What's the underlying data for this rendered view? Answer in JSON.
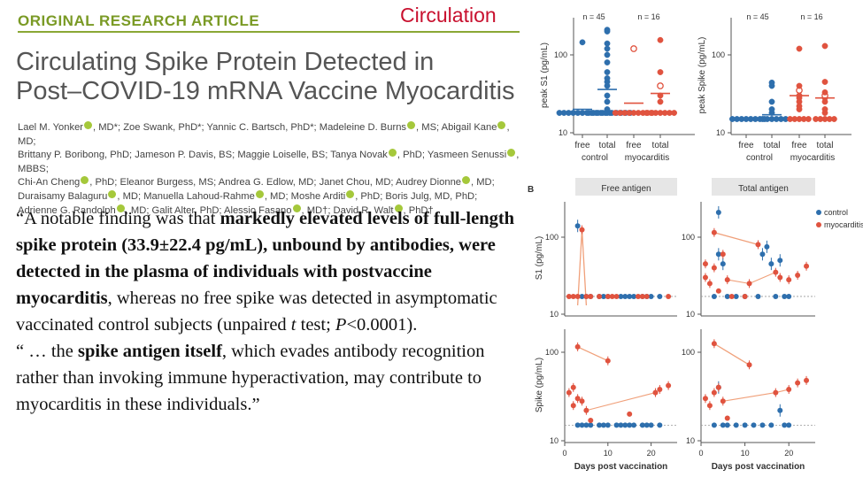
{
  "header": {
    "article_type": "ORIGINAL RESEARCH ARTICLE",
    "journal": "Circulation"
  },
  "title_lines": [
    "Circulating Spike Protein Detected in",
    "Post–COVID-19 mRNA Vaccine Myocarditis"
  ],
  "authors_lines": [
    "Lael M. Yonker●, MD*; Zoe Swank, PhD*; Yannic C. Bartsch, PhD*; Madeleine D. Burns●, MS; Abigail Kane●, MD;",
    "Brittany P. Boribong, PhD; Jameson P. Davis, BS; Maggie Loiselle, BS; Tanya Novak●, PhD; Yasmeen Senussi●, MBBS;",
    "Chi-An Cheng●, PhD; Eleanor Burgess, MS; Andrea G. Edlow, MD; Janet Chou, MD; Audrey Dionne●, MD;",
    "Duraisamy Balaguru●, MD; Manuella Lahoud-Rahme●, MD; Moshe Arditi●, PhD; Boris Julg, MD, PhD;",
    "Adrienne G. Randolph●, MD; Galit Alter, PhD; Alessio Fasano●, MD†; David R. Walt●, PhD†"
  ],
  "quote": {
    "p1_open": "“A notable finding was that ",
    "p1_bold": "markedly elevated levels of full-length spike protein (33.9±22.4 pg/mL), unbound by antibodies, were detected in the plasma of individuals with postvaccine myocarditis",
    "p1_rest": ", whereas no free spike was detected in asymptomatic vaccinated control subjects (unpaired ",
    "p1_t": "t",
    "p1_mid": " test; ",
    "p1_p": "P",
    "p1_end": "<0.0001).",
    "p2_open": "“ … the ",
    "p2_bold": "spike antigen itself",
    "p2_rest": ", which evades antibody recognition rather than invoking immune hyperactivation, may contribute to myocarditis in these individuals.”"
  },
  "colors": {
    "control": "#2e6fad",
    "myocarditis": "#e0533f",
    "line": "#f0a07a",
    "title_band": "#e6e6e6"
  },
  "chart_data": [
    {
      "type": "scatter",
      "panel": "A-left",
      "ylabel": "peak S1 (pg/mL)",
      "yscale": "log",
      "ylim": [
        10,
        300
      ],
      "y_ticks": [
        "10",
        "100"
      ],
      "categories": [
        "free",
        "total",
        "free",
        "total"
      ],
      "group_labels": [
        "control",
        "myocarditis"
      ],
      "n_labels": [
        "n = 45",
        "n = 16"
      ],
      "series": [
        {
          "group": "control",
          "category": "free",
          "values": [
            18,
            18,
            18,
            18,
            18,
            18,
            18,
            18,
            18,
            18,
            18,
            18,
            145
          ],
          "mean": 20
        },
        {
          "group": "control",
          "category": "total",
          "values": [
            18,
            18,
            18,
            18,
            18,
            18,
            18,
            18,
            18,
            18,
            20,
            25,
            30,
            40,
            45,
            50,
            60,
            80,
            100,
            120,
            140,
            200,
            210
          ],
          "mean": 36
        },
        {
          "group": "myocarditis",
          "category": "free",
          "values": [
            18,
            18,
            18,
            18,
            18,
            18,
            18,
            18,
            18,
            120
          ],
          "mean": 24,
          "hollow": [
            120
          ]
        },
        {
          "group": "myocarditis",
          "category": "total",
          "values": [
            18,
            18,
            18,
            18,
            18,
            18,
            18,
            25,
            30,
            40,
            60,
            155
          ],
          "mean": 32,
          "hollow": [
            40
          ]
        }
      ]
    },
    {
      "type": "scatter",
      "panel": "A-right",
      "ylabel": "peak Spike (pg/mL)",
      "yscale": "log",
      "ylim": [
        10,
        300
      ],
      "y_ticks": [
        "10",
        "100"
      ],
      "categories": [
        "free",
        "total",
        "free",
        "total"
      ],
      "group_labels": [
        "control",
        "myocarditis"
      ],
      "n_labels": [
        "n = 45",
        "n = 16"
      ],
      "series": [
        {
          "group": "control",
          "category": "free",
          "values": [
            15,
            15,
            15,
            15,
            15,
            15,
            15,
            15
          ],
          "mean": 15
        },
        {
          "group": "control",
          "category": "total",
          "values": [
            15,
            15,
            15,
            15,
            15,
            15,
            18,
            20,
            25,
            40,
            44
          ],
          "mean": 17
        },
        {
          "group": "myocarditis",
          "category": "free",
          "values": [
            15,
            15,
            15,
            15,
            15,
            20,
            22,
            25,
            28,
            30,
            35,
            40,
            120
          ],
          "mean": 30,
          "hollow": [
            35
          ]
        },
        {
          "group": "myocarditis",
          "category": "total",
          "values": [
            15,
            15,
            15,
            15,
            15,
            18,
            20,
            25,
            28,
            30,
            33,
            45,
            130
          ],
          "mean": 28,
          "hollow": [
            30
          ]
        }
      ]
    },
    {
      "type": "scatter",
      "panel": "B",
      "panel_letter": "B",
      "column_titles": [
        "Free antigen",
        "Total antigen"
      ],
      "rows": [
        {
          "ylabel": "S1 (pg/mL)",
          "y_ticks": [
            "10",
            "100"
          ],
          "baseline": 17
        },
        {
          "ylabel": "Spike (pg/mL)",
          "y_ticks": [
            "10",
            "100"
          ],
          "baseline": 15
        }
      ],
      "xlabel": "Days post vaccination",
      "x_ticks": [
        "0",
        "10",
        "20"
      ],
      "xlim": [
        0,
        25
      ],
      "legend": [
        "control",
        "myocarditis"
      ],
      "legend_position": "top-right",
      "points": [
        [
          {
            "control": [
              [
                3,
                140
              ],
              [
                4,
                17
              ],
              [
                5,
                17
              ],
              [
                6,
                17
              ],
              [
                8,
                17
              ],
              [
                9,
                17
              ],
              [
                10,
                17
              ],
              [
                13,
                17
              ],
              [
                14,
                17
              ],
              [
                15,
                17
              ],
              [
                16,
                17
              ],
              [
                18,
                17
              ],
              [
                19,
                17
              ],
              [
                20,
                17
              ],
              [
                22,
                17
              ]
            ],
            "myocarditis": [
              [
                1,
                17
              ],
              [
                2,
                17
              ],
              [
                3,
                17
              ],
              [
                4,
                125
              ],
              [
                5,
                17
              ],
              [
                6,
                17
              ],
              [
                8,
                17
              ],
              [
                10,
                17
              ],
              [
                11,
                17
              ],
              [
                12,
                17
              ],
              [
                17,
                17
              ],
              [
                18,
                17
              ],
              [
                19,
                17
              ],
              [
                24,
                17
              ]
            ]
          },
          {
            "control": [
              [
                3,
                17
              ],
              [
                4,
                210
              ],
              [
                4,
                60
              ],
              [
                5,
                45
              ],
              [
                6,
                17
              ],
              [
                8,
                17
              ],
              [
                10,
                17
              ],
              [
                13,
                17
              ],
              [
                14,
                60
              ],
              [
                15,
                75
              ],
              [
                16,
                45
              ],
              [
                17,
                17
              ],
              [
                18,
                50
              ],
              [
                19,
                17
              ],
              [
                20,
                17
              ]
            ],
            "myocarditis": [
              [
                1,
                30
              ],
              [
                1,
                45
              ],
              [
                2,
                25
              ],
              [
                3,
                115
              ],
              [
                3,
                40
              ],
              [
                4,
                20
              ],
              [
                5,
                60
              ],
              [
                6,
                28
              ],
              [
                7,
                17
              ],
              [
                10,
                17
              ],
              [
                11,
                25
              ],
              [
                13,
                80
              ],
              [
                17,
                35
              ],
              [
                18,
                30
              ],
              [
                20,
                28
              ],
              [
                22,
                32
              ],
              [
                24,
                42
              ]
            ]
          }
        ],
        [
          {
            "control": [
              [
                3,
                15
              ],
              [
                4,
                15
              ],
              [
                5,
                15
              ],
              [
                6,
                15
              ],
              [
                8,
                15
              ],
              [
                9,
                15
              ],
              [
                10,
                15
              ],
              [
                12,
                15
              ],
              [
                13,
                15
              ],
              [
                14,
                15
              ],
              [
                15,
                15
              ],
              [
                16,
                15
              ],
              [
                18,
                15
              ],
              [
                19,
                15
              ],
              [
                20,
                15
              ],
              [
                22,
                15
              ]
            ],
            "myocarditis": [
              [
                1,
                35
              ],
              [
                2,
                40
              ],
              [
                2,
                25
              ],
              [
                3,
                115
              ],
              [
                3,
                30
              ],
              [
                4,
                28
              ],
              [
                5,
                22
              ],
              [
                6,
                17
              ],
              [
                10,
                80
              ],
              [
                15,
                20
              ],
              [
                21,
                35
              ],
              [
                22,
                38
              ],
              [
                24,
                42
              ]
            ]
          },
          {
            "control": [
              [
                3,
                15
              ],
              [
                4,
                40
              ],
              [
                5,
                15
              ],
              [
                6,
                15
              ],
              [
                8,
                15
              ],
              [
                10,
                15
              ],
              [
                12,
                15
              ],
              [
                14,
                15
              ],
              [
                16,
                15
              ],
              [
                18,
                22
              ],
              [
                19,
                15
              ],
              [
                20,
                15
              ]
            ],
            "myocarditis": [
              [
                1,
                30
              ],
              [
                2,
                25
              ],
              [
                3,
                125
              ],
              [
                3,
                35
              ],
              [
                4,
                40
              ],
              [
                5,
                28
              ],
              [
                6,
                18
              ],
              [
                11,
                72
              ],
              [
                17,
                35
              ],
              [
                20,
                38
              ],
              [
                22,
                45
              ],
              [
                24,
                48
              ]
            ]
          }
        ]
      ]
    }
  ]
}
